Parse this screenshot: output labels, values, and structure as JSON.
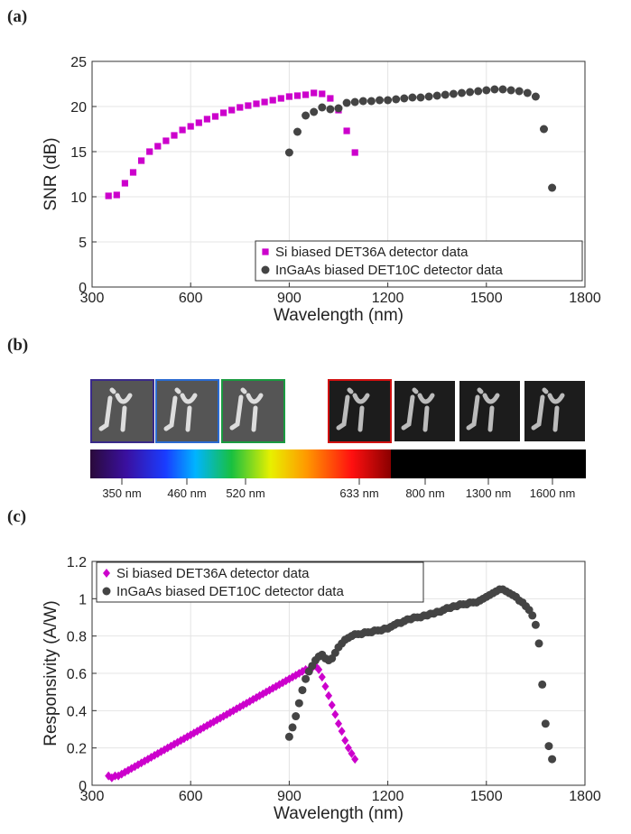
{
  "panels": [
    "(a)",
    "(b)",
    "(c)"
  ],
  "strip": {
    "labels": [
      "350 nm",
      "460 nm",
      "520 nm",
      "633 nm",
      "800 nm",
      "1300 nm",
      "1600 nm"
    ]
  },
  "chart_data": [
    {
      "type": "scatter",
      "xlabel": "Wavelength (nm)",
      "ylabel": "SNR (dB)",
      "xlim": [
        300,
        1800
      ],
      "ylim": [
        0,
        25
      ],
      "xticks": [
        300,
        600,
        900,
        1200,
        1500,
        1800
      ],
      "yticks": [
        0,
        5,
        10,
        15,
        20,
        25
      ],
      "grid": true,
      "legend": "lower right",
      "series": [
        {
          "name": "Si biased DET36A detector data",
          "color": "#cc00cc",
          "marker": "square",
          "x": [
            350,
            375,
            400,
            425,
            450,
            475,
            500,
            525,
            550,
            575,
            600,
            625,
            650,
            675,
            700,
            725,
            750,
            775,
            800,
            825,
            850,
            875,
            900,
            925,
            950,
            975,
            1000,
            1025,
            1050,
            1075,
            1100
          ],
          "values": [
            10.1,
            10.2,
            11.5,
            12.7,
            14.0,
            15.0,
            15.6,
            16.2,
            16.8,
            17.4,
            17.8,
            18.2,
            18.6,
            18.9,
            19.3,
            19.6,
            19.9,
            20.1,
            20.3,
            20.5,
            20.7,
            20.9,
            21.1,
            21.2,
            21.3,
            21.5,
            21.4,
            20.9,
            19.6,
            17.3,
            14.9
          ]
        },
        {
          "name": "InGaAs biased DET10C detector data",
          "color": "#444444",
          "marker": "circle",
          "x": [
            900,
            925,
            950,
            975,
            1000,
            1025,
            1050,
            1075,
            1100,
            1125,
            1150,
            1175,
            1200,
            1225,
            1250,
            1275,
            1300,
            1325,
            1350,
            1375,
            1400,
            1425,
            1450,
            1475,
            1500,
            1525,
            1550,
            1575,
            1600,
            1625,
            1650,
            1675,
            1700
          ],
          "values": [
            14.9,
            17.2,
            19.0,
            19.4,
            19.9,
            19.7,
            19.8,
            20.4,
            20.5,
            20.6,
            20.6,
            20.7,
            20.7,
            20.8,
            20.9,
            21.0,
            21.0,
            21.1,
            21.2,
            21.3,
            21.4,
            21.5,
            21.6,
            21.7,
            21.8,
            21.9,
            21.9,
            21.8,
            21.7,
            21.5,
            21.1,
            17.5,
            11.0
          ]
        }
      ]
    },
    {
      "type": "scatter",
      "xlabel": "Wavelength (nm)",
      "ylabel": "Responsivity (A/W)",
      "xlim": [
        300,
        1800
      ],
      "ylim": [
        0,
        1.2
      ],
      "xticks": [
        300,
        600,
        900,
        1200,
        1500,
        1800
      ],
      "yticks": [
        0,
        0.2,
        0.4,
        0.6,
        0.8,
        1,
        1.2
      ],
      "grid": true,
      "legend": "upper left",
      "series": [
        {
          "name": "Si biased DET36A detector data",
          "color": "#cc00cc",
          "marker": "diamond",
          "x": [
            350,
            360,
            370,
            380,
            390,
            400,
            410,
            420,
            430,
            440,
            450,
            460,
            470,
            480,
            490,
            500,
            510,
            520,
            530,
            540,
            550,
            560,
            570,
            580,
            590,
            600,
            610,
            620,
            630,
            640,
            650,
            660,
            670,
            680,
            690,
            700,
            710,
            720,
            730,
            740,
            750,
            760,
            770,
            780,
            790,
            800,
            810,
            820,
            830,
            840,
            850,
            860,
            870,
            880,
            890,
            900,
            910,
            920,
            930,
            940,
            950,
            960,
            970,
            980,
            990,
            1000,
            1010,
            1020,
            1030,
            1040,
            1050,
            1060,
            1070,
            1080,
            1090,
            1100
          ],
          "values": [
            0.05,
            0.04,
            0.05,
            0.05,
            0.06,
            0.07,
            0.08,
            0.09,
            0.1,
            0.11,
            0.12,
            0.13,
            0.14,
            0.15,
            0.16,
            0.17,
            0.18,
            0.19,
            0.2,
            0.21,
            0.22,
            0.23,
            0.24,
            0.25,
            0.26,
            0.27,
            0.28,
            0.29,
            0.3,
            0.31,
            0.32,
            0.33,
            0.34,
            0.35,
            0.36,
            0.37,
            0.38,
            0.39,
            0.4,
            0.41,
            0.42,
            0.43,
            0.44,
            0.45,
            0.46,
            0.47,
            0.48,
            0.49,
            0.5,
            0.51,
            0.52,
            0.53,
            0.54,
            0.55,
            0.56,
            0.57,
            0.58,
            0.59,
            0.6,
            0.61,
            0.62,
            0.62,
            0.63,
            0.64,
            0.62,
            0.58,
            0.53,
            0.48,
            0.43,
            0.38,
            0.33,
            0.29,
            0.24,
            0.2,
            0.17,
            0.14
          ]
        },
        {
          "name": "InGaAs biased DET10C detector data",
          "color": "#444444",
          "marker": "circle",
          "x": [
            900,
            910,
            920,
            930,
            940,
            950,
            960,
            970,
            980,
            990,
            1000,
            1010,
            1020,
            1030,
            1040,
            1050,
            1060,
            1070,
            1080,
            1090,
            1100,
            1110,
            1120,
            1130,
            1140,
            1150,
            1160,
            1170,
            1180,
            1190,
            1200,
            1210,
            1220,
            1230,
            1240,
            1250,
            1260,
            1270,
            1280,
            1290,
            1300,
            1310,
            1320,
            1330,
            1340,
            1350,
            1360,
            1370,
            1380,
            1390,
            1400,
            1410,
            1420,
            1430,
            1440,
            1450,
            1460,
            1470,
            1480,
            1490,
            1500,
            1510,
            1520,
            1530,
            1540,
            1550,
            1560,
            1570,
            1580,
            1590,
            1600,
            1610,
            1620,
            1630,
            1640,
            1650,
            1660,
            1670,
            1680,
            1690,
            1700
          ],
          "values": [
            0.26,
            0.31,
            0.37,
            0.44,
            0.51,
            0.57,
            0.61,
            0.64,
            0.67,
            0.69,
            0.7,
            0.68,
            0.67,
            0.68,
            0.71,
            0.74,
            0.76,
            0.78,
            0.79,
            0.8,
            0.81,
            0.81,
            0.81,
            0.82,
            0.82,
            0.82,
            0.83,
            0.83,
            0.83,
            0.84,
            0.84,
            0.85,
            0.86,
            0.87,
            0.87,
            0.88,
            0.89,
            0.89,
            0.9,
            0.9,
            0.9,
            0.91,
            0.91,
            0.92,
            0.92,
            0.93,
            0.93,
            0.94,
            0.95,
            0.95,
            0.96,
            0.96,
            0.97,
            0.97,
            0.97,
            0.98,
            0.98,
            0.98,
            0.99,
            1.0,
            1.01,
            1.02,
            1.03,
            1.04,
            1.05,
            1.05,
            1.04,
            1.03,
            1.02,
            1.01,
            0.99,
            0.98,
            0.96,
            0.94,
            0.91,
            0.86,
            0.76,
            0.54,
            0.33,
            0.21,
            0.14
          ]
        }
      ]
    }
  ]
}
